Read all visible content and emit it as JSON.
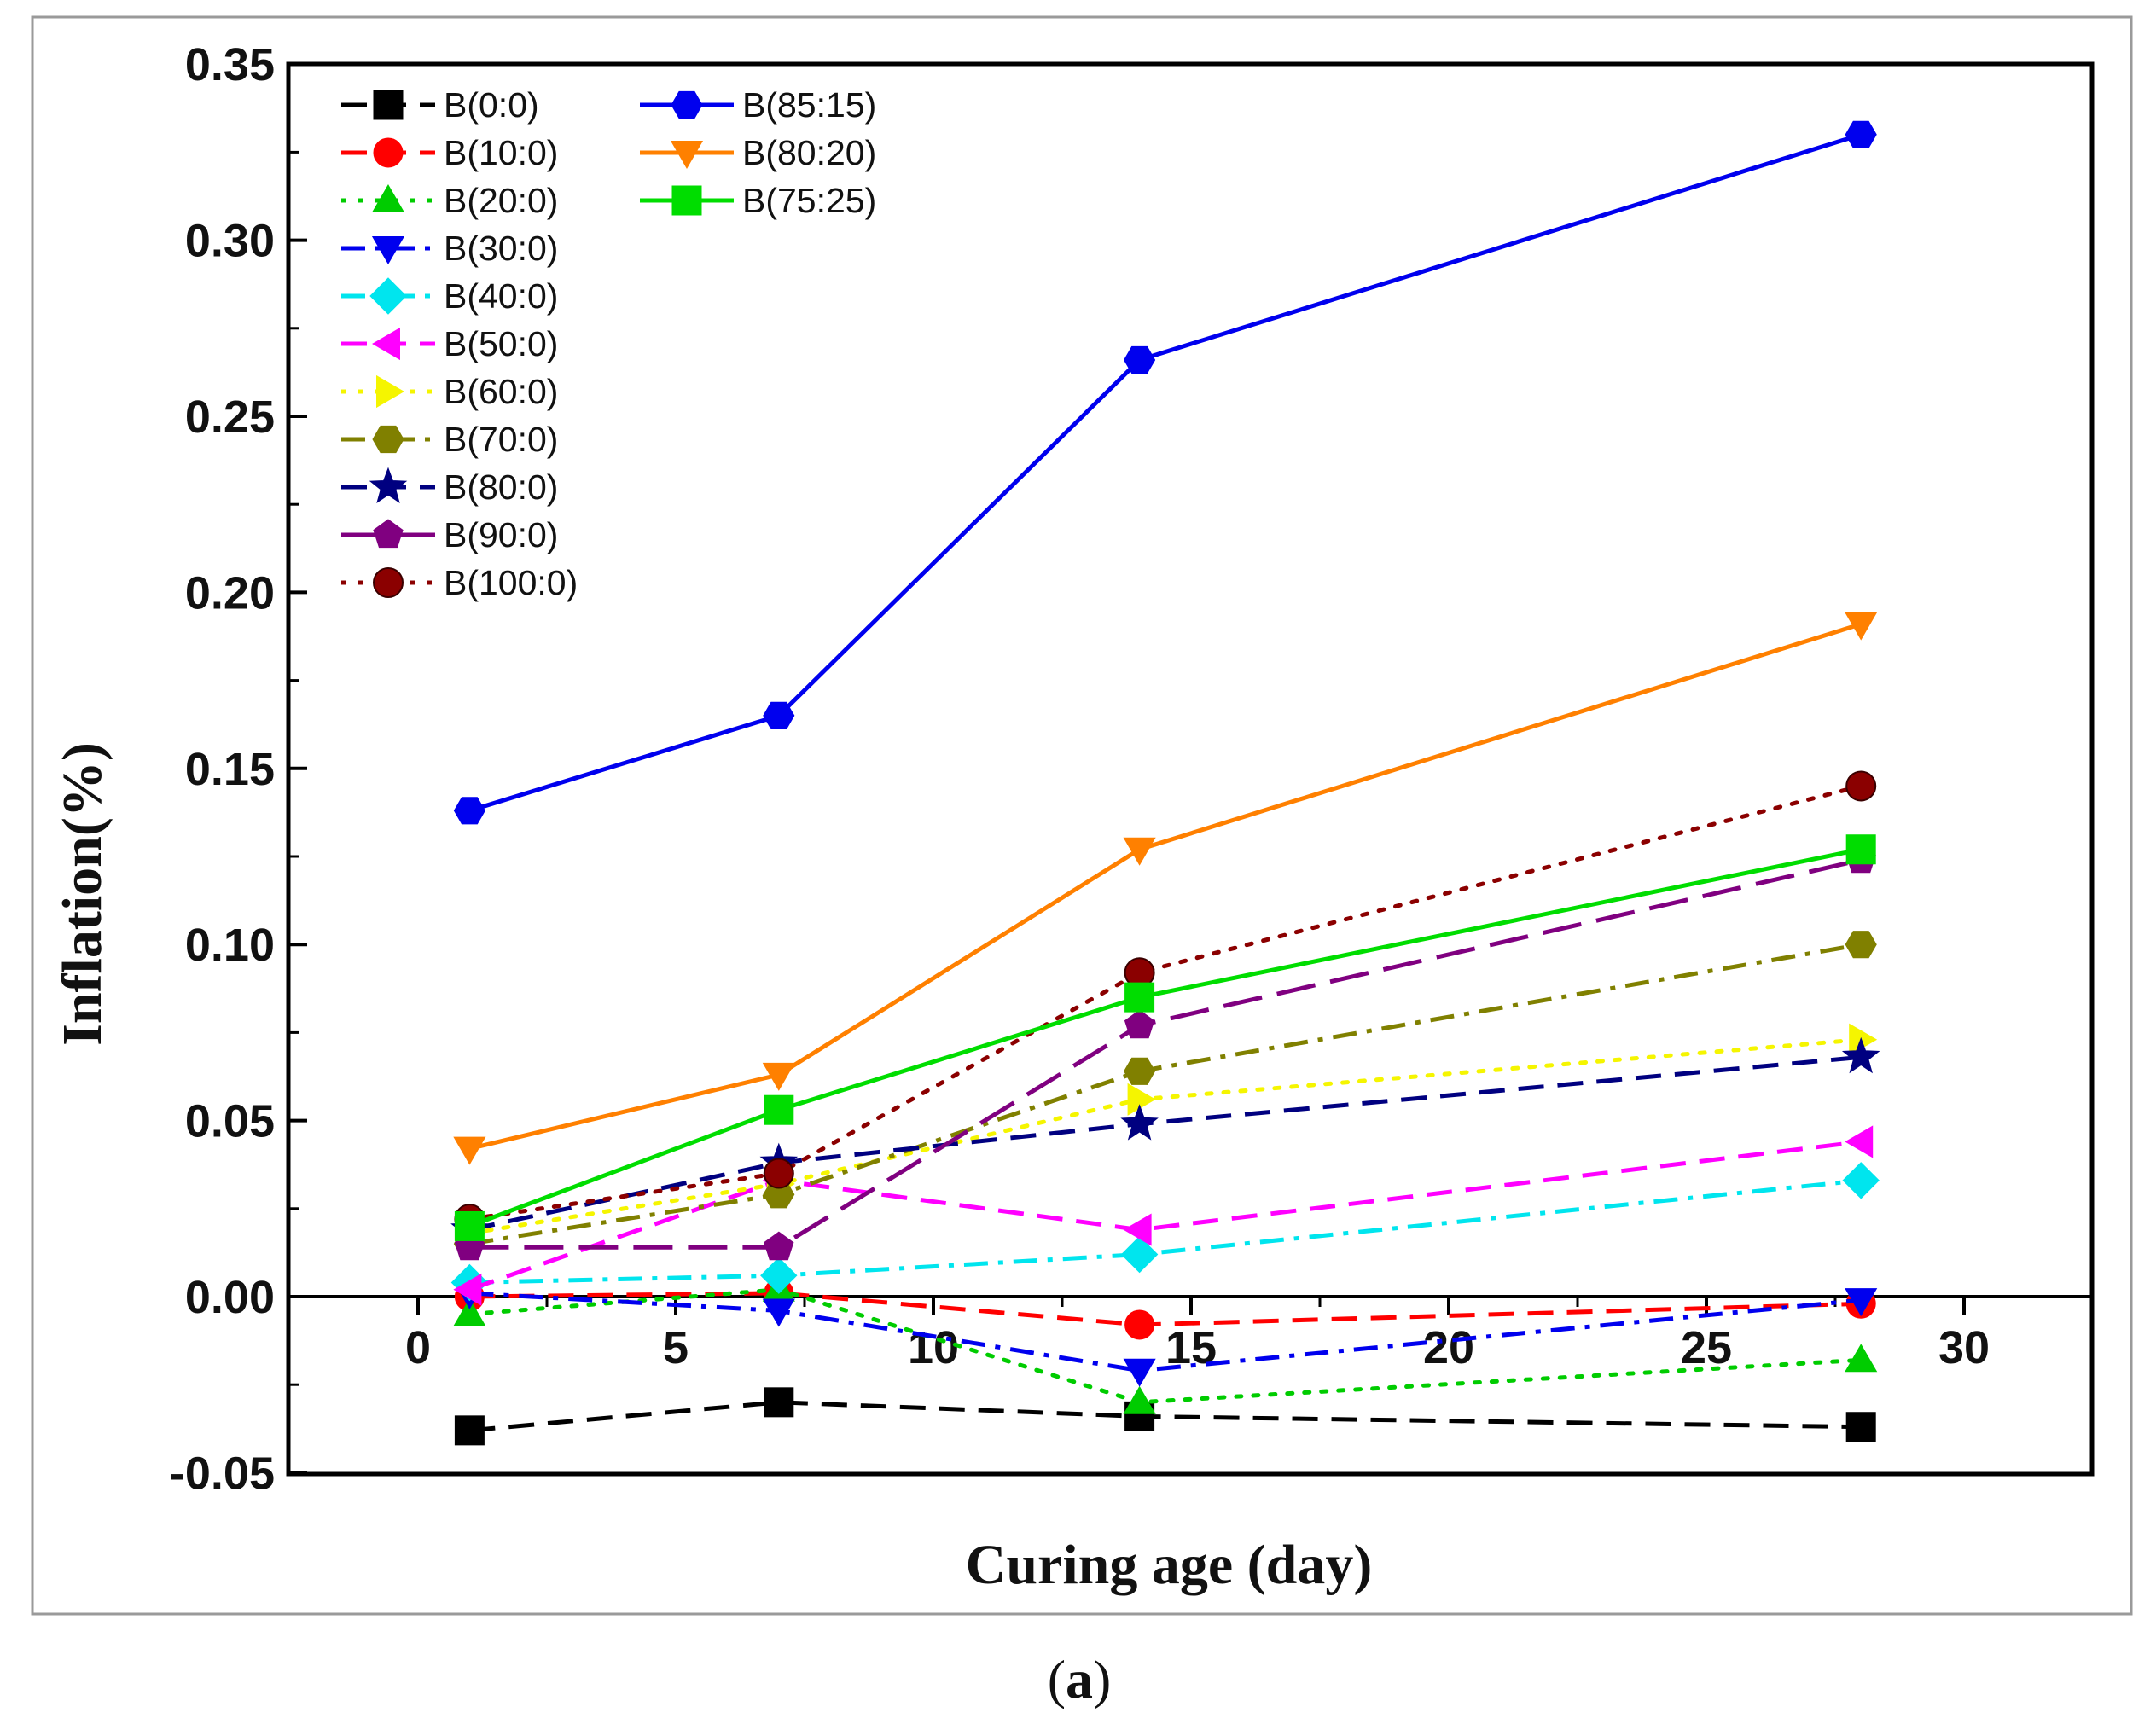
{
  "caption": {
    "open": "(",
    "letter": "a",
    "close": ")"
  },
  "chart_data": {
    "type": "line",
    "title": "",
    "xlabel": "Curing age (day)",
    "ylabel": "Inflation(%)",
    "xlim": [
      -2,
      32.5
    ],
    "ylim": [
      -0.05,
      0.35
    ],
    "xticks": [
      0,
      5,
      10,
      15,
      20,
      25,
      30
    ],
    "xtick_labels": [
      "0",
      "5",
      "10",
      "15",
      "20",
      "25",
      "30"
    ],
    "yticks": [
      -0.05,
      0.0,
      0.05,
      0.1,
      0.15,
      0.2,
      0.25,
      0.3,
      0.35
    ],
    "ytick_labels": [
      "-0.05",
      "0.00",
      "0.05",
      "0.10",
      "0.15",
      "0.20",
      "0.25",
      "0.30",
      "0.35"
    ],
    "legend_position": "top-left",
    "x": [
      1,
      7,
      14,
      28
    ],
    "series": [
      {
        "name": "B(0:0)",
        "color": "#000000",
        "dash": "dash",
        "marker": "square",
        "values": [
          -0.038,
          -0.03,
          -0.034,
          -0.037
        ]
      },
      {
        "name": "B(10:0)",
        "color": "#ff0000",
        "dash": "dash",
        "marker": "circle",
        "values": [
          0.0,
          0.001,
          -0.008,
          -0.002
        ]
      },
      {
        "name": "B(20:0)",
        "color": "#00cc00",
        "dash": "dot",
        "marker": "triangle",
        "values": [
          -0.005,
          0.002,
          -0.03,
          -0.018
        ]
      },
      {
        "name": "B(30:0)",
        "color": "#0000ee",
        "dash": "dashdot",
        "marker": "tri-down",
        "values": [
          0.001,
          -0.004,
          -0.021,
          -0.001
        ]
      },
      {
        "name": "B(40:0)",
        "color": "#00e5ee",
        "dash": "dashdot",
        "marker": "diamond",
        "values": [
          0.004,
          0.006,
          0.012,
          0.033
        ]
      },
      {
        "name": "B(50:0)",
        "color": "#ff00ff",
        "dash": "dash",
        "marker": "tri-left",
        "values": [
          0.002,
          0.033,
          0.019,
          0.044
        ]
      },
      {
        "name": "B(60:0)",
        "color": "#f5f500",
        "dash": "dot",
        "marker": "tri-right",
        "values": [
          0.018,
          0.032,
          0.056,
          0.073
        ]
      },
      {
        "name": "B(70:0)",
        "color": "#808000",
        "dash": "dashdot",
        "marker": "hexagon",
        "values": [
          0.015,
          0.029,
          0.064,
          0.1
        ]
      },
      {
        "name": "B(80:0)",
        "color": "#000080",
        "dash": "dash",
        "marker": "star",
        "values": [
          0.019,
          0.038,
          0.049,
          0.068
        ]
      },
      {
        "name": "B(90:0)",
        "color": "#800080",
        "dash": "longdash",
        "marker": "pentagon",
        "values": [
          0.014,
          0.014,
          0.077,
          0.124
        ]
      },
      {
        "name": "B(100:0)",
        "color": "#8b0000",
        "dash": "dot",
        "marker": "ball",
        "values": [
          0.022,
          0.035,
          0.092,
          0.145
        ]
      },
      {
        "name": "B(85:15)",
        "color": "#0000ee",
        "dash": "solid",
        "marker": "hexagon",
        "values": [
          0.138,
          0.165,
          0.266,
          0.33
        ]
      },
      {
        "name": "B(80:20)",
        "color": "#ff8000",
        "dash": "solid",
        "marker": "tri-down",
        "values": [
          0.042,
          0.063,
          0.127,
          0.191
        ]
      },
      {
        "name": "B(75:25)",
        "color": "#00dd00",
        "dash": "solid",
        "marker": "square",
        "values": [
          0.02,
          0.053,
          0.085,
          0.127
        ]
      }
    ],
    "legend_columns": [
      [
        "B(0:0)",
        "B(10:0)",
        "B(20:0)",
        "B(30:0)",
        "B(40:0)",
        "B(50:0)",
        "B(60:0)",
        "B(70:0)",
        "B(80:0)",
        "B(90:0)",
        "B(100:0)"
      ],
      [
        "B(85:15)",
        "B(80:20)",
        "B(75:25)"
      ]
    ]
  }
}
